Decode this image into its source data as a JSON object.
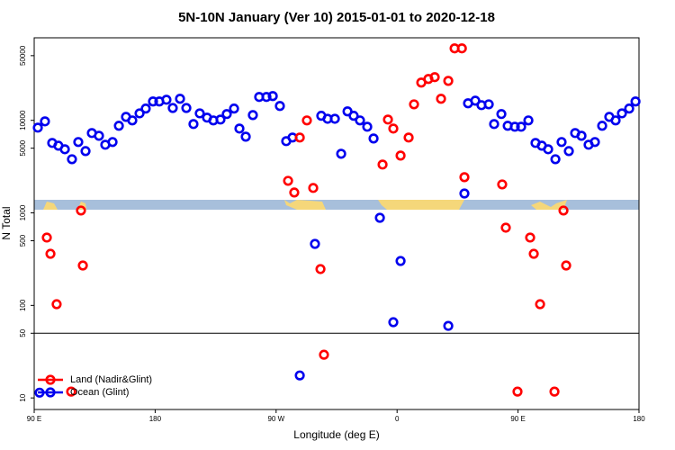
{
  "chart_data": {
    "type": "scatter",
    "title": "5N-10N January (Ver 10)   2015-01-01 to 2020-12-18",
    "x_label": "Longitude (deg E)",
    "y_label": "N Total",
    "xlim": [
      90,
      540
    ],
    "ylim": [
      7.5,
      78000
    ],
    "log_y": true,
    "hline": 50,
    "legend_position": "lower left",
    "xticks": [
      {
        "value": 90,
        "label": "90 E"
      },
      180,
      {
        "value": 270,
        "label": "90 W"
      },
      {
        "value": 360,
        "label": "0"
      },
      {
        "value": 450,
        "label": "90 E"
      },
      {
        "value": 540,
        "label": "180"
      }
    ],
    "yticks": [
      10,
      50,
      100,
      500,
      1000,
      5000,
      10000,
      50000
    ],
    "series": [
      {
        "name": "Land (Nadir&Glint)",
        "color": "#ff0000",
        "x": [
          99.4,
          102.1,
          106.7,
          124.8,
          126.2,
          117.5,
          278.9,
          283.5,
          287.6,
          292.9,
          297.6,
          303,
          305.6,
          349.2,
          353.2,
          357.2,
          362.6,
          368.6,
          372.6,
          378,
          383.3,
          388,
          392.7,
          398.1,
          402.8,
          408.2,
          410.1,
          438.2,
          440.9,
          449.6,
          459,
          461.7,
          466.4,
          477.1,
          483.8,
          485.8
        ],
        "values": [
          541,
          361,
          103,
          1060,
          270,
          11.7,
          2220,
          1660,
          6520,
          9980,
          1860,
          247,
          29.3,
          3330,
          10200,
          8150,
          4160,
          6520,
          14900,
          25600,
          28000,
          29300,
          17100,
          26700,
          60000,
          60000,
          2430,
          2030,
          692,
          11.7,
          541,
          361,
          103,
          11.7,
          1060,
          270
        ]
      },
      {
        "name": "Ocean (Glint)",
        "color": "#0000ee",
        "x": [
          92.7,
          98,
          103.4,
          108,
          112.8,
          118.1,
          122.8,
          128.2,
          132.9,
          138.2,
          142.9,
          148.3,
          153,
          158.3,
          163,
          168.4,
          173,
          178.4,
          183.1,
          188.4,
          193.1,
          198.5,
          203.2,
          208.5,
          213.2,
          218.6,
          223.3,
          228.6,
          233.3,
          238.7,
          242.7,
          247.4,
          252.7,
          257.4,
          262.8,
          267.5,
          272.8,
          277.5,
          282.2,
          287.6,
          298.9,
          303.6,
          308.3,
          313.7,
          318.4,
          323.1,
          327.7,
          332.4,
          337.8,
          342.5,
          347.2,
          357.2,
          362.6,
          398.1,
          410.1,
          412.8,
          418.2,
          422.8,
          428.2,
          432.2,
          437.6,
          442.3,
          447.6,
          452.3,
          457.7,
          463,
          467.7,
          472.4,
          477.8,
          482.4,
          487.8,
          492.5,
          497.2,
          502.5,
          507.2,
          512.6,
          517.9,
          522.6,
          527.3,
          532.7,
          537.4,
          94
        ],
        "values": [
          8340,
          9750,
          5700,
          5320,
          4870,
          3800,
          5830,
          4650,
          7290,
          6810,
          5450,
          5830,
          8730,
          10900,
          9980,
          11900,
          13400,
          16000,
          16000,
          16700,
          13600,
          17100,
          13600,
          9120,
          11900,
          10700,
          9980,
          10200,
          11700,
          13400,
          8150,
          6660,
          11400,
          17900,
          17900,
          18300,
          14300,
          5960,
          6520,
          17.5,
          462,
          11200,
          10400,
          10400,
          4350,
          12500,
          11200,
          9980,
          8530,
          6370,
          885,
          65.8,
          302,
          60.1,
          1620,
          15300,
          16300,
          14600,
          14900,
          9120,
          11700,
          8730,
          8530,
          8530,
          9980,
          5700,
          5320,
          4870,
          3800,
          5830,
          4650,
          7290,
          6810,
          5450,
          5830,
          8730,
          10900,
          9980,
          11900,
          13400,
          16000,
          11.4
        ]
      }
    ]
  }
}
